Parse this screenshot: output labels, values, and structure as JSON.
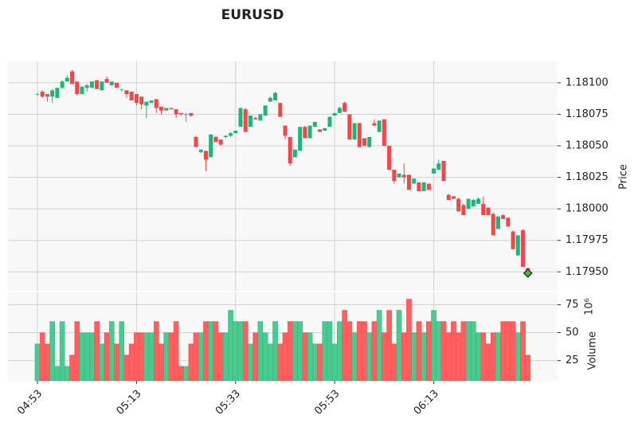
{
  "chart_data": {
    "type": "candlestick",
    "title": "EURUSD",
    "ylabel": "Price",
    "volume_label": "Volume",
    "volume_exponent": "10⁶",
    "categories": [
      "04:53",
      null,
      null,
      null,
      null,
      null,
      null,
      null,
      null,
      null,
      null,
      null,
      null,
      null,
      null,
      null,
      null,
      null,
      null,
      null,
      "05:13",
      null,
      null,
      null,
      null,
      null,
      null,
      null,
      null,
      null,
      null,
      null,
      null,
      null,
      null,
      null,
      null,
      null,
      null,
      null,
      "05:33",
      null,
      null,
      null,
      null,
      null,
      null,
      null,
      null,
      null,
      null,
      null,
      null,
      null,
      null,
      null,
      null,
      null,
      null,
      null,
      "05:53",
      null,
      null,
      null,
      null,
      null,
      null,
      null,
      null,
      null,
      null,
      null,
      null,
      null,
      null,
      null,
      null,
      null,
      null,
      null,
      "06:13",
      null,
      null,
      null,
      null,
      null,
      null,
      null,
      null,
      null,
      null,
      null,
      null,
      null,
      null,
      null,
      null,
      null,
      null,
      null
    ],
    "open": [
      1.18091,
      1.18093,
      1.18091,
      1.18089,
      1.18088,
      1.18096,
      1.18101,
      1.18109,
      1.18101,
      1.18091,
      1.18096,
      1.18096,
      1.18102,
      1.18094,
      1.18103,
      1.18098,
      1.181,
      1.18095,
      1.18094,
      1.18093,
      1.18091,
      1.18089,
      1.18082,
      1.18084,
      1.18087,
      1.18081,
      1.18078,
      1.1808,
      1.18079,
      1.18076,
      1.18075,
      1.18076,
      1.18057,
      1.18045,
      1.18046,
      1.18041,
      1.18057,
      1.18055,
      1.18057,
      1.18058,
      1.1806,
      1.18065,
      1.18079,
      1.18065,
      1.18072,
      1.1807,
      1.18074,
      1.18085,
      1.18086,
      1.18084,
      1.18066,
      1.18057,
      1.18041,
      1.18046,
      1.18065,
      1.18056,
      1.18065,
      1.18063,
      1.18062,
      1.18065,
      1.18074,
      1.18076,
      1.18084,
      1.18075,
      1.18055,
      1.18068,
      1.18056,
      1.18049,
      1.18068,
      1.18061,
      1.18071,
      1.1805,
      1.18031,
      1.18025,
      1.18027,
      1.18027,
      1.1802,
      1.18021,
      1.18014,
      1.1802,
      1.18028,
      1.18031,
      1.18038,
      1.18011,
      1.1801,
      1.18008,
      1.18003,
      1.18,
      1.18002,
      1.18004,
      1.18004,
      1.18001,
      1.17996,
      1.17984,
      1.17995,
      1.17993,
      1.17982,
      1.17963,
      1.17983,
      1.17953
    ],
    "high": [
      1.18092,
      1.18094,
      1.18091,
      1.18095,
      1.18096,
      1.18102,
      1.18106,
      1.1811,
      1.18101,
      1.18097,
      1.18099,
      1.18101,
      1.18102,
      1.18101,
      1.18105,
      1.18101,
      1.181,
      1.18095,
      1.18094,
      1.18093,
      1.18091,
      1.18089,
      1.18085,
      1.18086,
      1.18087,
      1.18081,
      1.1808,
      1.1808,
      1.18079,
      1.18076,
      1.18076,
      1.18076,
      1.18058,
      1.18047,
      1.18046,
      1.18059,
      1.18058,
      1.18055,
      1.18058,
      1.18061,
      1.18062,
      1.1808,
      1.1808,
      1.18074,
      1.18073,
      1.18075,
      1.18082,
      1.18089,
      1.18093,
      1.18084,
      1.18066,
      1.18057,
      1.18047,
      1.18065,
      1.18066,
      1.18066,
      1.18069,
      1.18063,
      1.18064,
      1.18073,
      1.18076,
      1.18081,
      1.18085,
      1.18075,
      1.18068,
      1.18068,
      1.18056,
      1.18057,
      1.18071,
      1.1807,
      1.18071,
      1.1805,
      1.18031,
      1.18028,
      1.18036,
      1.18027,
      1.18024,
      1.18021,
      1.18021,
      1.1802,
      1.18032,
      1.18039,
      1.18038,
      1.18012,
      1.1801,
      1.18009,
      1.18004,
      1.18008,
      1.18008,
      1.18009,
      1.1801,
      1.18001,
      1.17997,
      1.17994,
      1.17996,
      1.17993,
      1.17983,
      1.17979,
      1.17984,
      1.17953
    ],
    "low": [
      1.1809,
      1.18088,
      1.18085,
      1.18084,
      1.18088,
      1.18095,
      1.18101,
      1.18099,
      1.1809,
      1.18091,
      1.18093,
      1.18096,
      1.18095,
      1.18094,
      1.181,
      1.18098,
      1.18096,
      1.18093,
      1.18088,
      1.18086,
      1.18082,
      1.18079,
      1.18072,
      1.18084,
      1.18076,
      1.18075,
      1.18078,
      1.18079,
      1.18072,
      1.18074,
      1.18069,
      1.18073,
      1.18049,
      1.18044,
      1.1803,
      1.18041,
      1.18053,
      1.1805,
      1.18056,
      1.18057,
      1.1806,
      1.18065,
      1.18061,
      1.18065,
      1.18071,
      1.1807,
      1.18074,
      1.18085,
      1.18086,
      1.18073,
      1.18055,
      1.18034,
      1.18041,
      1.18046,
      1.18056,
      1.18056,
      1.18065,
      1.18061,
      1.18062,
      1.18065,
      1.18074,
      1.18076,
      1.18077,
      1.18055,
      1.18055,
      1.18049,
      1.1805,
      1.18049,
      1.18066,
      1.18061,
      1.1805,
      1.18031,
      1.1802,
      1.18025,
      1.1802,
      1.18015,
      1.1802,
      1.18014,
      1.18014,
      1.18015,
      1.18028,
      1.18031,
      1.18022,
      1.18007,
      1.18008,
      1.17998,
      1.17995,
      1.18,
      1.18002,
      1.18004,
      1.17995,
      1.17995,
      1.17979,
      1.17984,
      1.17992,
      1.17986,
      1.17968,
      1.17963,
      1.17954,
      1.17949
    ],
    "close": [
      1.18091,
      1.18089,
      1.18089,
      1.18094,
      1.18096,
      1.18101,
      1.18104,
      1.18099,
      1.18091,
      1.18097,
      1.18098,
      1.18101,
      1.18095,
      1.18101,
      1.181,
      1.18101,
      1.18096,
      1.18095,
      1.18091,
      1.18086,
      1.18084,
      1.18083,
      1.18085,
      1.18086,
      1.1808,
      1.18078,
      1.1808,
      1.18079,
      1.18075,
      1.18075,
      1.18075,
      1.18074,
      1.18049,
      1.18047,
      1.18039,
      1.18059,
      1.18053,
      1.18051,
      1.18058,
      1.1806,
      1.18062,
      1.1808,
      1.18061,
      1.18074,
      1.18071,
      1.18075,
      1.18082,
      1.18088,
      1.18092,
      1.18073,
      1.18058,
      1.18036,
      1.18047,
      1.18065,
      1.18056,
      1.18066,
      1.18069,
      1.18061,
      1.18064,
      1.18073,
      1.18076,
      1.1808,
      1.18077,
      1.18055,
      1.18068,
      1.18049,
      1.1805,
      1.18057,
      1.18066,
      1.1807,
      1.1805,
      1.18031,
      1.18022,
      1.18028,
      1.18025,
      1.18015,
      1.18024,
      1.18014,
      1.18021,
      1.18015,
      1.18032,
      1.18036,
      1.18022,
      1.18007,
      1.18008,
      1.17998,
      1.17995,
      1.18008,
      1.18007,
      1.18008,
      1.17995,
      1.17995,
      1.17979,
      1.17994,
      1.17992,
      1.17986,
      1.17968,
      1.17979,
      1.17954,
      1.17949
    ],
    "volume": [
      40,
      50,
      40,
      60,
      20,
      60,
      20,
      30,
      60,
      50,
      50,
      50,
      60,
      40,
      50,
      60,
      40,
      60,
      30,
      40,
      50,
      50,
      50,
      50,
      60,
      40,
      50,
      50,
      60,
      20,
      20,
      40,
      50,
      50,
      60,
      60,
      60,
      50,
      50,
      70,
      60,
      60,
      60,
      40,
      50,
      60,
      50,
      40,
      60,
      40,
      50,
      60,
      60,
      60,
      50,
      50,
      40,
      40,
      60,
      60,
      40,
      60,
      70,
      60,
      50,
      60,
      60,
      50,
      60,
      70,
      50,
      70,
      40,
      70,
      50,
      80,
      50,
      60,
      50,
      60,
      70,
      60,
      60,
      50,
      60,
      50,
      60,
      60,
      60,
      50,
      50,
      40,
      50,
      50,
      60,
      60,
      60,
      50,
      60,
      30
    ],
    "up_color": "#1fb57a",
    "down_color": "#f04848",
    "volume_up_color": "#4cc98e",
    "volume_down_color": "#ff5f5f",
    "marker": {
      "value": 1.17949,
      "color": "#3fbf3f"
    },
    "ylim": [
      1.17935,
      1.18117
    ],
    "yticks": [
      {
        "value": 1.1795,
        "label": "1.17950"
      },
      1.17975,
      {
        "value": 1.18,
        "label": "1.18000"
      },
      1.18025,
      {
        "value": 1.1805,
        "label": "1.18050"
      },
      1.18075,
      {
        "value": 1.181,
        "label": "1.18100"
      }
    ],
    "y2lim": [
      7,
      86
    ],
    "y2ticks": [
      25,
      50,
      75
    ],
    "grid": true
  }
}
